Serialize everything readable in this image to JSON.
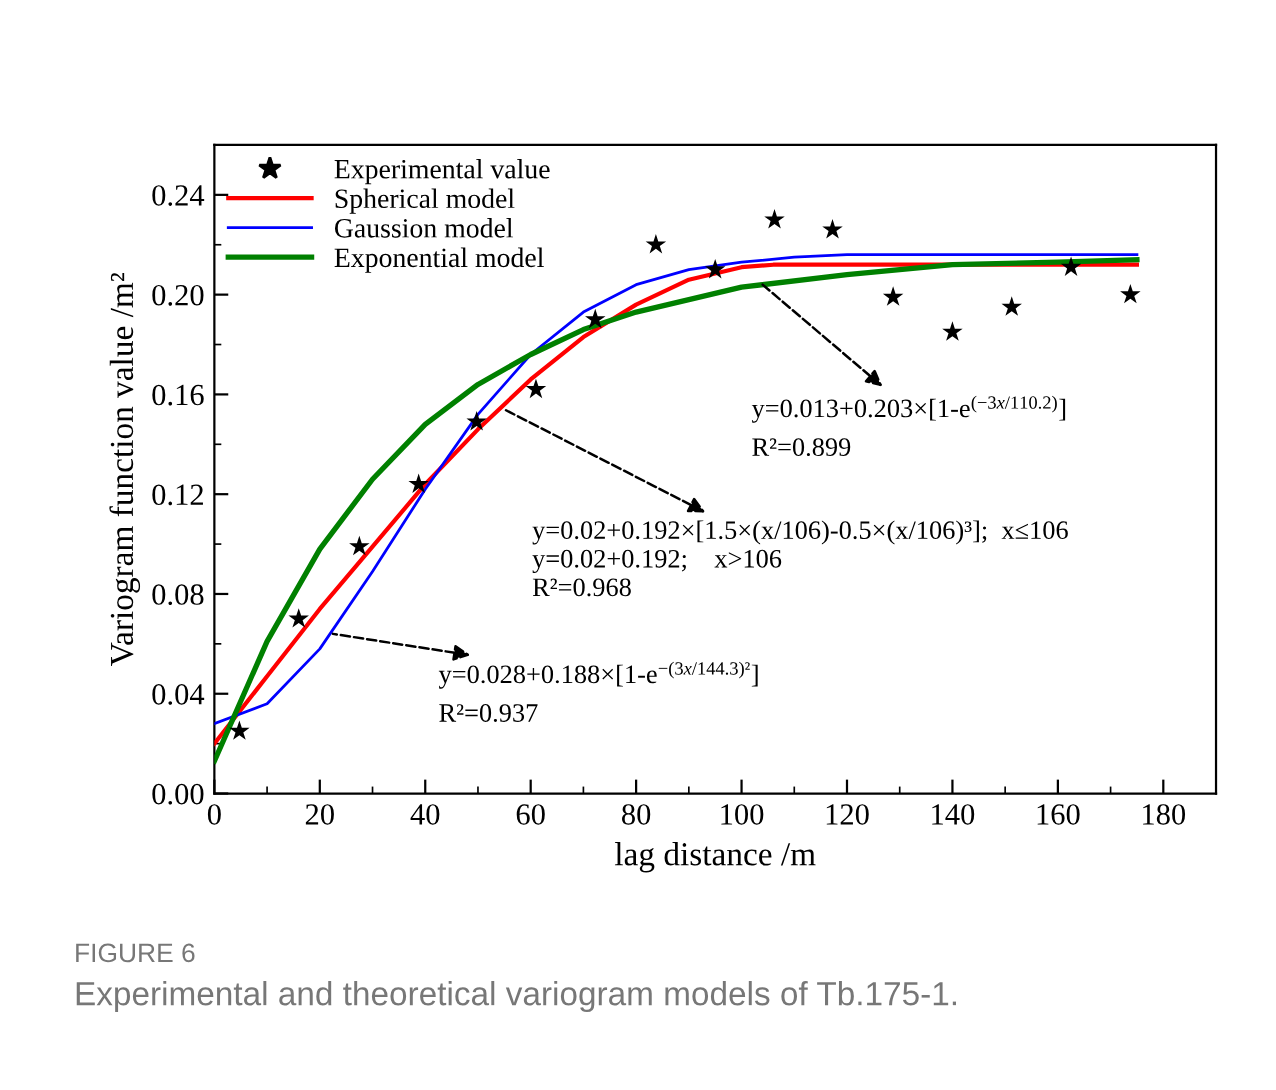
{
  "chart_data": {
    "type": "line",
    "xlabel": "lag distance /m",
    "ylabel": "Variogram function value /m²",
    "xlim": [
      0,
      190
    ],
    "xticks": [
      0,
      20,
      40,
      60,
      80,
      100,
      120,
      140,
      160,
      180
    ],
    "ylim": [
      0,
      0.26
    ],
    "yticks": [
      {
        "value": 0,
        "label": "0.00"
      },
      {
        "value": 0.04,
        "label": "0.04"
      },
      {
        "value": 0.08,
        "label": "0.08"
      },
      {
        "value": 0.12,
        "label": "0.12"
      },
      {
        "value": 0.16,
        "label": "0.16"
      },
      {
        "value": 0.2,
        "label": "0.20"
      },
      {
        "value": 0.24,
        "label": "0.24"
      }
    ],
    "legend": "top left",
    "series": [
      {
        "name": "Experimental value",
        "type": "scatter",
        "marker": "star",
        "color": "#000000",
        "x": [
          4.75,
          16,
          27.5,
          38.75,
          49.75,
          61,
          72.25,
          83.75,
          95,
          106.25,
          117.25,
          128.75,
          140,
          151.25,
          162.5,
          173.75
        ],
        "values": [
          0.025,
          0.07,
          0.099,
          0.124,
          0.149,
          0.162,
          0.19,
          0.22,
          0.21,
          0.23,
          0.226,
          0.199,
          0.185,
          0.195,
          0.211,
          0.2
        ]
      },
      {
        "name": "Spherical model",
        "color": "#ff0000",
        "x": [
          0,
          10,
          20,
          30,
          40,
          50,
          60,
          70,
          80,
          90,
          100,
          106,
          120,
          140,
          160,
          175
        ],
        "values": [
          0.02,
          0.047,
          0.074,
          0.099,
          0.124,
          0.146,
          0.166,
          0.183,
          0.196,
          0.206,
          0.211,
          0.212,
          0.212,
          0.212,
          0.212,
          0.212
        ]
      },
      {
        "name": "Gaussion model",
        "color": "#0000ff",
        "x": [
          0,
          10,
          20,
          30,
          40,
          50,
          60,
          70,
          80,
          90,
          100,
          110,
          120,
          140,
          160,
          175
        ],
        "values": [
          0.028,
          0.036,
          0.058,
          0.089,
          0.122,
          0.152,
          0.176,
          0.193,
          0.204,
          0.21,
          0.213,
          0.215,
          0.216,
          0.216,
          0.216,
          0.216
        ]
      },
      {
        "name": "Exponential model",
        "color": "#008000",
        "x": [
          0,
          10,
          20,
          30,
          40,
          50,
          60,
          70,
          80,
          90,
          100,
          120,
          140,
          160,
          175
        ],
        "values": [
          0.013,
          0.061,
          0.098,
          0.126,
          0.148,
          0.164,
          0.176,
          0.186,
          0.193,
          0.198,
          0.203,
          0.208,
          0.212,
          0.213,
          0.214
        ]
      }
    ],
    "annotations": [
      {
        "text": "y=0.013+0.203×[1-e$^{(−3x/110.2)}$]",
        "x": 104,
        "y": 0.204
      },
      "R²=0.899",
      {
        "text": "y=0.02+0.192×[1.5×(x/106)-0.5×(x/106)³];  x≤106\ny=0.02+0.192;    x>106\nR²=0.968",
        "x": 55,
        "y": 0.154
      },
      {
        "text": "y=0.028+0.188×[1-e$^{−(3x/144.3)²}$]",
        "x": 22.5,
        "y": 0.064
      },
      "R²=0.937",
      "FIGURE 6",
      "Experimental and theoretical variogram models of Tb.175-1."
    ]
  }
}
